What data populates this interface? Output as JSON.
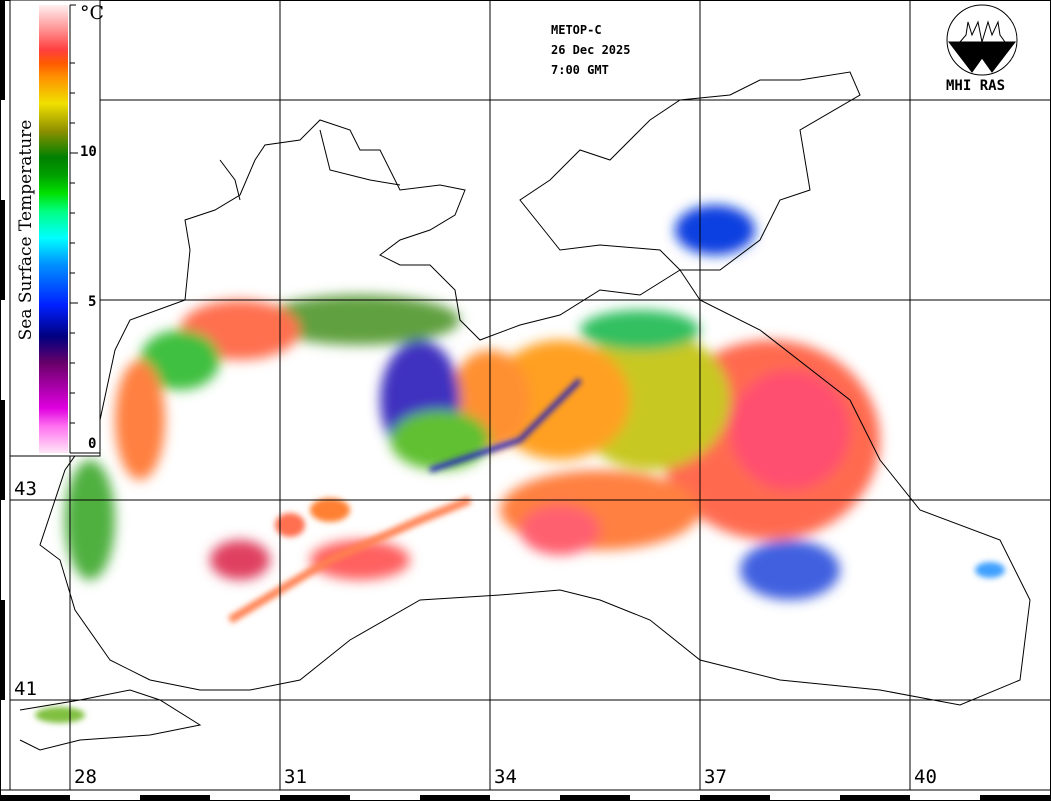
{
  "header": {
    "satellite": "METOP-C",
    "date": "26 Dec 2025",
    "time": "7:00 GMT"
  },
  "logo": {
    "text": "MHI RAS"
  },
  "legend": {
    "title": "Sea Surface Temperature",
    "unit": "°C",
    "ticks": [
      "10",
      "5",
      "0"
    ],
    "range": [
      0,
      15
    ],
    "colors": [
      "#ffe0f0",
      "#ff80ff",
      "#e000e0",
      "#800080",
      "#000080",
      "#0000ff",
      "#0080ff",
      "#00ffff",
      "#00ff60",
      "#00c000",
      "#008000",
      "#808000",
      "#e0e000",
      "#ffa000",
      "#ff6000",
      "#ff4040",
      "#ff9090",
      "#ffe0e0"
    ]
  },
  "axes": {
    "longitude_labels": [
      "28",
      "31",
      "34",
      "37",
      "40"
    ],
    "latitude_labels": [
      "43",
      "41"
    ]
  }
}
